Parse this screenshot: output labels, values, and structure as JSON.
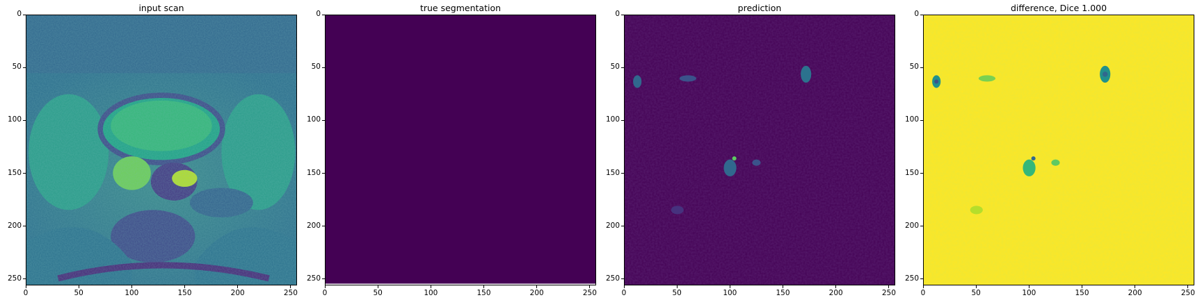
{
  "colors": {
    "viridis_dark": "#440154",
    "viridis_mid": "#21918c",
    "viridis_green": "#5ec962",
    "viridis_yellow": "#fde725",
    "background": "#ffffff"
  },
  "axes": {
    "x_ticks": [
      "0",
      "50",
      "100",
      "150",
      "200",
      "250"
    ],
    "y_ticks": [
      "0",
      "50",
      "100",
      "150",
      "200",
      "250"
    ],
    "xlim": [
      0,
      256
    ],
    "ylim": [
      256,
      0
    ],
    "colormap": "viridis"
  },
  "panels": [
    {
      "title": "input scan",
      "image": "MRI pelvic axial scan"
    },
    {
      "title": "true segmentation",
      "image": "uniform background mask"
    },
    {
      "title": "prediction",
      "image": "sparse low-intensity prediction map"
    },
    {
      "title": "difference, Dice 1.000",
      "image": "mostly yellow difference map"
    }
  ]
}
